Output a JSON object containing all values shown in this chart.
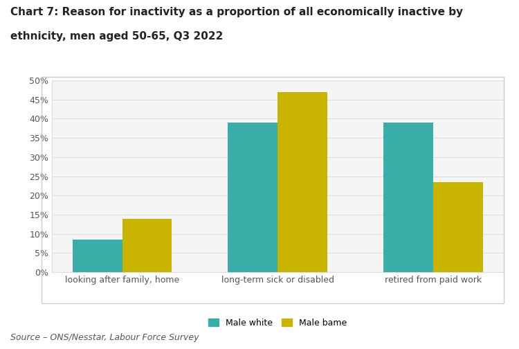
{
  "title_line1": "Chart 7: Reason for inactivity as a proportion of all economically inactive by",
  "title_line2": "ethnicity, men aged 50-65, Q3 2022",
  "categories": [
    "looking after family, home",
    "long-term sick or disabled",
    "retired from paid work"
  ],
  "male_white": [
    8.5,
    39.0,
    39.0
  ],
  "male_bame": [
    14.0,
    47.0,
    23.5
  ],
  "color_white": "#3AADA8",
  "color_bame": "#C8B400",
  "ylim": [
    0,
    50
  ],
  "yticks": [
    0,
    5,
    10,
    15,
    20,
    25,
    30,
    35,
    40,
    45,
    50
  ],
  "ytick_labels": [
    "0%",
    "5%",
    "10%",
    "15%",
    "20%",
    "25%",
    "30%",
    "35%",
    "40%",
    "45%",
    "50%"
  ],
  "legend_labels": [
    "Male white",
    "Male bame"
  ],
  "source_text": "Source – ONS/Nesstar, Labour Force Survey",
  "background_color": "#ffffff",
  "plot_bg_color": "#f5f5f5",
  "bar_width": 0.32,
  "title_fontsize": 11,
  "tick_fontsize": 9,
  "legend_fontsize": 9,
  "source_fontsize": 9,
  "grid_color": "#dddddd"
}
